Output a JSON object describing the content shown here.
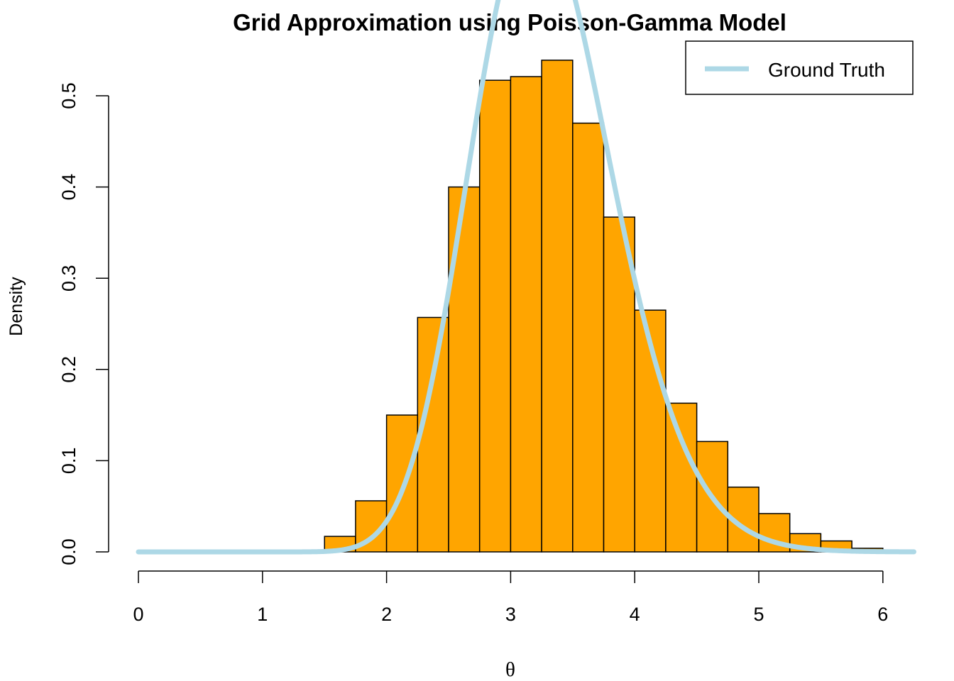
{
  "chart_data": {
    "type": "bar",
    "title": "Grid Approximation using Poisson-Gamma Model",
    "xlabel": "θ",
    "ylabel": "Density",
    "xlim": [
      0,
      6.25
    ],
    "ylim": [
      0,
      0.55
    ],
    "x_ticks": [
      0,
      1,
      2,
      3,
      4,
      5,
      6
    ],
    "y_ticks": [
      0.0,
      0.1,
      0.2,
      0.3,
      0.4,
      0.5
    ],
    "y_tick_labels": [
      "0.0",
      "0.1",
      "0.2",
      "0.3",
      "0.4",
      "0.5"
    ],
    "histogram": {
      "bin_width": 0.25,
      "fill_color": "#FFA500",
      "bins": [
        {
          "x0": 1.25,
          "density": 0.002
        },
        {
          "x0": 1.5,
          "density": 0.017
        },
        {
          "x0": 1.75,
          "density": 0.056
        },
        {
          "x0": 2.0,
          "density": 0.15
        },
        {
          "x0": 2.25,
          "density": 0.257
        },
        {
          "x0": 2.5,
          "density": 0.4
        },
        {
          "x0": 2.75,
          "density": 0.517
        },
        {
          "x0": 3.0,
          "density": 0.521
        },
        {
          "x0": 3.25,
          "density": 0.539
        },
        {
          "x0": 3.5,
          "density": 0.47
        },
        {
          "x0": 3.75,
          "density": 0.367
        },
        {
          "x0": 4.0,
          "density": 0.265
        },
        {
          "x0": 4.25,
          "density": 0.163
        },
        {
          "x0": 4.5,
          "density": 0.121
        },
        {
          "x0": 4.75,
          "density": 0.071
        },
        {
          "x0": 5.0,
          "density": 0.042
        },
        {
          "x0": 5.25,
          "density": 0.02
        },
        {
          "x0": 5.5,
          "density": 0.012
        },
        {
          "x0": 5.75,
          "density": 0.004
        },
        {
          "x0": 6.0,
          "density": 0.002
        }
      ]
    },
    "series": [
      {
        "name": "Ground Truth",
        "type": "line",
        "color": "#ADD8E6",
        "distribution": "gamma",
        "shape": 33,
        "rate": 10,
        "x_range": [
          0,
          6.25
        ]
      }
    ],
    "legend": {
      "position": "top-right",
      "entries": [
        "Ground Truth"
      ]
    },
    "grid": false
  }
}
